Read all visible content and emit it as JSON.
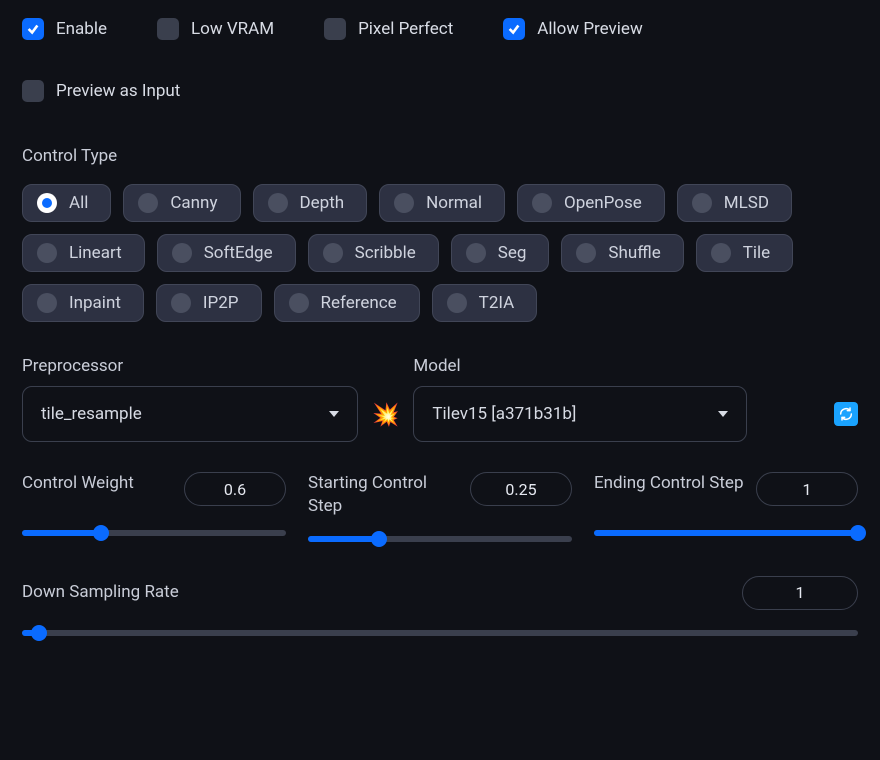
{
  "colors": {
    "bg": "#0f1117",
    "pill_bg": "#2d3142",
    "pill_border": "#414657",
    "border": "#3a3f4d",
    "text": "#d8dce5",
    "text_muted": "#c9cdd8",
    "accent": "#0a6bff",
    "refresh_btn": "#1aa3ff"
  },
  "checks": {
    "enable": {
      "label": "Enable",
      "checked": true
    },
    "low_vram": {
      "label": "Low VRAM",
      "checked": false
    },
    "pixel": {
      "label": "Pixel Perfect",
      "checked": false
    },
    "preview": {
      "label": "Allow Preview",
      "checked": true
    },
    "prev_in": {
      "label": "Preview as Input",
      "checked": false
    }
  },
  "control_type": {
    "title": "Control Type",
    "selected_index": 0,
    "options": [
      "All",
      "Canny",
      "Depth",
      "Normal",
      "OpenPose",
      "MLSD",
      "Lineart",
      "SoftEdge",
      "Scribble",
      "Seg",
      "Shuffle",
      "Tile",
      "Inpaint",
      "IP2P",
      "Reference",
      "T2IA"
    ]
  },
  "preprocessor": {
    "label": "Preprocessor",
    "value": "tile_resample"
  },
  "model": {
    "label": "Model",
    "value": "Tilev15 [a371b31b]"
  },
  "explode_icon": "💥",
  "sliders": {
    "control_weight": {
      "label": "Control Weight",
      "value": "0.6",
      "fill_pct": 30
    },
    "start_step": {
      "label": "Starting Control Step",
      "value": "0.25",
      "fill_pct": 27
    },
    "end_step": {
      "label": "Ending Control Step",
      "value": "1",
      "fill_pct": 100
    },
    "downsample": {
      "label": "Down Sampling Rate",
      "value": "1",
      "fill_pct": 2
    }
  }
}
